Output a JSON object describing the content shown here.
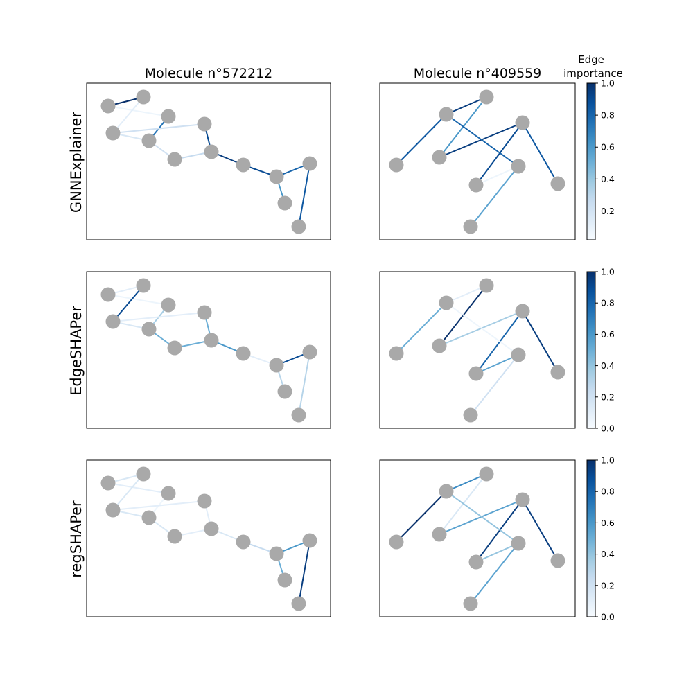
{
  "columns": [
    "Molecule n°572212",
    "Molecule n°409559"
  ],
  "rows": [
    "GNNExplainer",
    "EdgeSHAPer",
    "regSHAPer"
  ],
  "colorbar": {
    "title_line1": "Edge",
    "title_line2": "importance",
    "colormap": "Blues",
    "ranges": [
      [
        0.02,
        1.0
      ],
      [
        0.0,
        1.0
      ],
      [
        0.0,
        1.0
      ]
    ],
    "ticks": [
      [
        "0.2",
        "0.4",
        "0.6",
        "0.8",
        "1.0"
      ],
      [
        "0.0",
        "0.2",
        "0.4",
        "0.6",
        "0.8",
        "1.0"
      ],
      [
        "0.0",
        "0.2",
        "0.4",
        "0.6",
        "0.8",
        "1.0"
      ]
    ]
  },
  "colors": {
    "node": "#a9a9a9",
    "frame": "#000000"
  },
  "molecules": [
    {
      "id": "572212",
      "edges": [
        [
          0,
          1
        ],
        [
          0,
          2
        ],
        [
          1,
          3
        ],
        [
          2,
          4
        ],
        [
          3,
          4
        ],
        [
          3,
          5
        ],
        [
          4,
          6
        ],
        [
          5,
          7
        ],
        [
          6,
          7
        ],
        [
          7,
          8
        ],
        [
          8,
          9
        ],
        [
          9,
          10
        ],
        [
          9,
          11
        ],
        [
          11,
          12
        ]
      ],
      "importance": [
        [
          1.0,
          0.05,
          0.1,
          0.75,
          0.15,
          0.2,
          0.2,
          0.9,
          0.25,
          0.95,
          0.9,
          0.6,
          0.8,
          0.85
        ],
        [
          0.1,
          0.05,
          0.9,
          0.35,
          0.15,
          0.1,
          0.5,
          0.5,
          0.5,
          0.6,
          0.1,
          0.3,
          0.9,
          0.3
        ],
        [
          0.15,
          0.1,
          0.15,
          0.05,
          0.15,
          0.1,
          0.15,
          0.1,
          0.1,
          0.15,
          0.25,
          0.5,
          0.6,
          0.95
        ]
      ]
    },
    {
      "id": "409559",
      "edges": [
        [
          0,
          1
        ],
        [
          1,
          2
        ],
        [
          2,
          3
        ],
        [
          3,
          4
        ],
        [
          4,
          5
        ],
        [
          5,
          6
        ],
        [
          6,
          1
        ],
        [
          6,
          7
        ],
        [
          4,
          8
        ]
      ],
      "importance": [
        [
          0.85,
          0.95,
          0.6,
          0.95,
          0.9,
          0.05,
          0.8,
          0.55,
          0.85
        ],
        [
          0.5,
          0.1,
          1.0,
          0.35,
          0.8,
          0.55,
          0.05,
          0.2,
          0.95
        ],
        [
          1.0,
          0.65,
          0.15,
          0.55,
          0.95,
          0.4,
          0.4,
          0.55,
          0.95
        ]
      ]
    }
  ]
}
